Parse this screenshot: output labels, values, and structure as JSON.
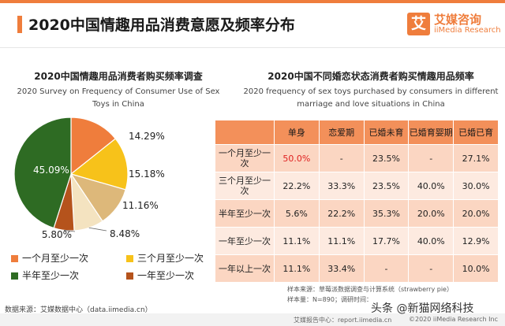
{
  "colors": {
    "accent": "#ef7d3c",
    "table_header": "#f3905a",
    "row_odd": "#fbd6c2",
    "row_even": "#fdeae0",
    "highlight": "#e02020",
    "pie": [
      "#ef7d3c",
      "#f7c21a",
      "#2e6b23",
      "#b5531c",
      "#ddb87a"
    ]
  },
  "header": {
    "title": "2020中国情趣用品消费意愿及频率分布",
    "logo_mark": "艾",
    "logo_cn": "艾媒咨询",
    "logo_en": "iiMedia Research"
  },
  "left_panel": {
    "title_cn": "2020中国情趣用品消费者购买频率调查",
    "title_en_line1": "2020 Survey on Frequency of Consumer Use of Sex",
    "title_en_line2": "Toys in China"
  },
  "right_panel": {
    "title_cn": "2020中国不同婚恋状态消费者购买情趣用品频率",
    "title_en_line1": "2020 frequency of sex toys purchased by consumers in different",
    "title_en_line2": "marriage and love situations in China"
  },
  "chart_data": [
    {
      "type": "pie",
      "title": "2020中国情趣用品消费者购买频率调查",
      "subtitle": "2020 Survey on Frequency of Consumer Use of Sex Toys in China",
      "slices": [
        {
          "label": "一个月至少一次",
          "value": 14.29,
          "text": "14.29%",
          "color": "#ef7d3c"
        },
        {
          "label": "三个月至少一次",
          "value": 15.18,
          "text": "15.18%",
          "color": "#f7c21a"
        },
        {
          "label": "",
          "value": 11.16,
          "text": "11.16%",
          "color": "#ddb87a"
        },
        {
          "label": "",
          "value": 8.48,
          "text": "8.48%",
          "color": "#f4e3c0"
        },
        {
          "label": "一年至少一次",
          "value": 5.8,
          "text": "5.80%",
          "color": "#b5531c"
        },
        {
          "label": "半年至少一次",
          "value": 45.09,
          "text": "45.09%",
          "color": "#2e6b23"
        }
      ],
      "legend": [
        {
          "label": "一个月至少一次",
          "color": "#ef7d3c"
        },
        {
          "label": "三个月至少一次",
          "color": "#f7c21a"
        },
        {
          "label": "半年至少一次",
          "color": "#2e6b23"
        },
        {
          "label": "一年至少一次",
          "color": "#b5531c"
        }
      ],
      "legend_placement": "bottom"
    },
    {
      "type": "table",
      "title": "2020中国不同婚恋状态消费者购买情趣用品频率",
      "subtitle": "2020 frequency of sex toys purchased by consumers in different marriage and love situations in China",
      "columns": [
        "单身",
        "恋爱期",
        "已婚未育",
        "已婚育婴期",
        "已婚已育"
      ],
      "rows": [
        {
          "label": "一个月至少一次",
          "values": [
            "50.0%",
            "-",
            "23.5%",
            "-",
            "27.1%"
          ],
          "highlight": [
            0
          ]
        },
        {
          "label": "三个月至少一次",
          "values": [
            "22.2%",
            "33.3%",
            "23.5%",
            "40.0%",
            "30.0%"
          ],
          "highlight": []
        },
        {
          "label": "半年至少一次",
          "values": [
            "5.6%",
            "22.2%",
            "35.3%",
            "20.0%",
            "20.0%"
          ],
          "highlight": []
        },
        {
          "label": "一年至少一次",
          "values": [
            "11.1%",
            "11.1%",
            "17.7%",
            "40.0%",
            "12.9%"
          ],
          "highlight": []
        },
        {
          "label": "一年以上一次",
          "values": [
            "11.1%",
            "33.4%",
            "-",
            "-",
            "10.0%"
          ],
          "highlight": []
        }
      ]
    }
  ],
  "notes": {
    "sample_source": "样本来源：草莓派数据调查与计算系统（strawberry pie）",
    "sample_size": "样本量：N=890；调研时间：",
    "data_source": "数据来源：艾媒数据中心（data.iimedia.cn）",
    "footer_report": "艾媒报告中心：report.iimedia.cn",
    "footer_copyright": "©2020  iiMedia Research  Inc",
    "watermark": "头条 @新猫网络科技"
  }
}
